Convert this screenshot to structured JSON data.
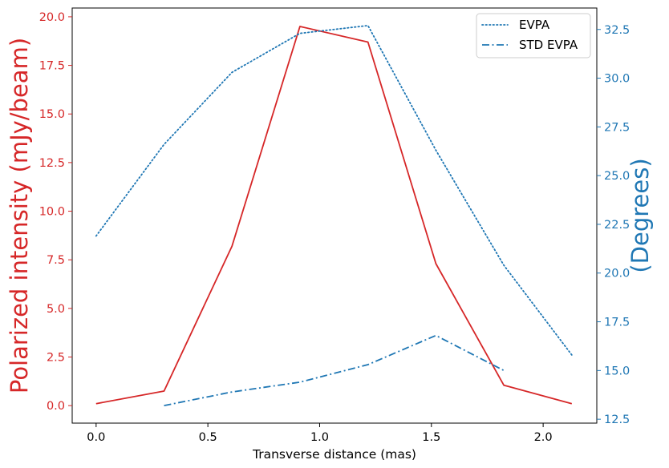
{
  "chart_data": {
    "type": "line",
    "xlabel": "Transverse distance (mas)",
    "ylabel_left": "Polarized intensity (mJy/beam)",
    "ylabel_right": "(Degrees)",
    "xlim": [
      -0.107,
      2.24
    ],
    "ylim_left": [
      -0.9,
      20.45
    ],
    "ylim_right": [
      12.3,
      33.6
    ],
    "x_ticks": [
      0.0,
      0.5,
      1.0,
      1.5,
      2.0
    ],
    "x_tick_labels": [
      "0.0",
      "0.5",
      "1.0",
      "1.5",
      "2.0"
    ],
    "y_left_ticks": [
      0.0,
      2.5,
      5.0,
      7.5,
      10.0,
      12.5,
      15.0,
      17.5,
      20.0
    ],
    "y_left_tick_labels": [
      "0.0",
      "2.5",
      "5.0",
      "7.5",
      "10.0",
      "12.5",
      "15.0",
      "17.5",
      "20.0"
    ],
    "y_right_ticks": [
      12.5,
      15.0,
      17.5,
      20.0,
      22.5,
      25.0,
      27.5,
      30.0,
      32.5
    ],
    "y_right_tick_labels": [
      "12.5",
      "15.0",
      "17.5",
      "20.0",
      "22.5",
      "25.0",
      "27.5",
      "30.0",
      "32.5"
    ],
    "grid": false,
    "legend_position": "top-right",
    "series": [
      {
        "name": "",
        "axis": "left",
        "style": "solid",
        "color": "#d62728",
        "x": [
          0.0,
          0.304,
          0.608,
          0.912,
          1.216,
          1.52,
          1.824,
          2.128
        ],
        "y": [
          0.1,
          0.75,
          8.2,
          19.5,
          18.7,
          7.3,
          1.05,
          0.1
        ]
      },
      {
        "name": "EVPA",
        "axis": "right",
        "style": "dotted",
        "color": "#1f77b4",
        "x": [
          0.0,
          0.304,
          0.608,
          0.912,
          1.216,
          1.52,
          1.824,
          2.128
        ],
        "y": [
          21.9,
          26.6,
          30.3,
          32.3,
          32.7,
          26.3,
          20.4,
          15.8
        ]
      },
      {
        "name": "STD EVPA",
        "axis": "right",
        "style": "dashdot",
        "color": "#1f77b4",
        "x": [
          0.304,
          0.608,
          0.912,
          1.216,
          1.52,
          1.824
        ],
        "y": [
          13.2,
          13.9,
          14.4,
          15.3,
          16.8,
          15.0
        ]
      }
    ],
    "colors": {
      "left_axis": "#d62728",
      "right_axis": "#1f77b4"
    }
  }
}
